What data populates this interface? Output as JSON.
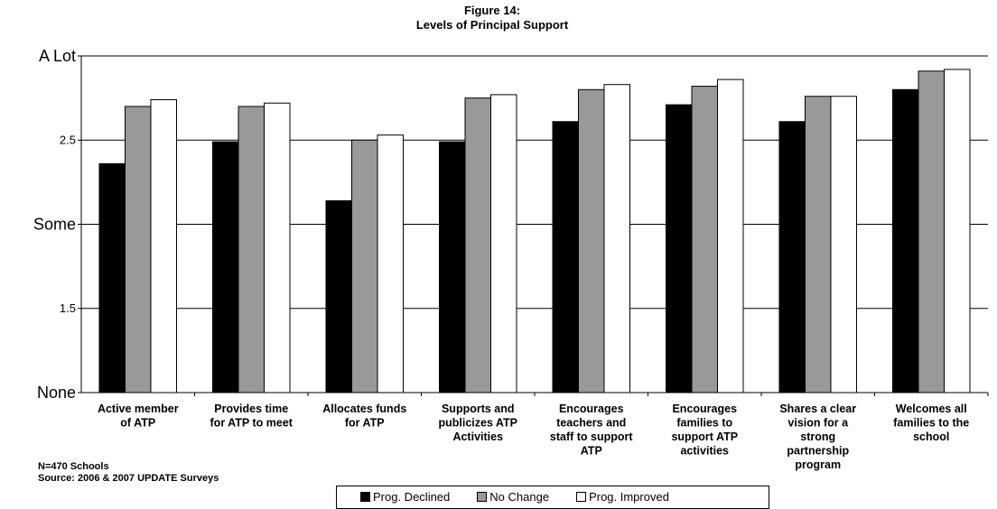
{
  "chart_data": {
    "type": "bar",
    "title": [
      "Figure 14:",
      "Levels of Principal Support"
    ],
    "ylim": [
      1,
      3
    ],
    "yticks": [
      {
        "value": 1,
        "label": "None",
        "big": true
      },
      {
        "value": 1.5,
        "label": "1.5",
        "big": false
      },
      {
        "value": 2,
        "label": "Some",
        "big": true
      },
      {
        "value": 2.5,
        "label": "2.5",
        "big": false
      },
      {
        "value": 3,
        "label": "A Lot",
        "big": true
      }
    ],
    "grid": true,
    "categories": [
      [
        "Active member",
        "of ATP"
      ],
      [
        "Provides time",
        "for ATP to meet"
      ],
      [
        "Allocates funds",
        "for ATP"
      ],
      [
        "Supports and",
        "publicizes ATP",
        "Activities"
      ],
      [
        "Encourages",
        "teachers and",
        "staff to support",
        "ATP"
      ],
      [
        "Encourages",
        "families to",
        "support ATP",
        "activities"
      ],
      [
        "Shares a clear",
        "vision for a",
        "strong",
        "partnership",
        "program"
      ],
      [
        "Welcomes all",
        "families to the",
        "school"
      ]
    ],
    "series": [
      {
        "name": "Prog. Declined",
        "color": "#000000",
        "values": [
          2.36,
          2.49,
          2.14,
          2.49,
          2.61,
          2.71,
          2.61,
          2.8
        ]
      },
      {
        "name": "No Change",
        "color": "#999999",
        "values": [
          2.7,
          2.7,
          2.5,
          2.75,
          2.8,
          2.82,
          2.76,
          2.91
        ]
      },
      {
        "name": "Prog. Improved",
        "color": "#ffffff",
        "values": [
          2.74,
          2.72,
          2.53,
          2.77,
          2.83,
          2.86,
          2.76,
          2.92
        ]
      }
    ],
    "legend_position": "bottom"
  },
  "notes": {
    "n": "N=470 Schools",
    "source": "Source: 2006 & 2007 UPDATE Surveys"
  }
}
